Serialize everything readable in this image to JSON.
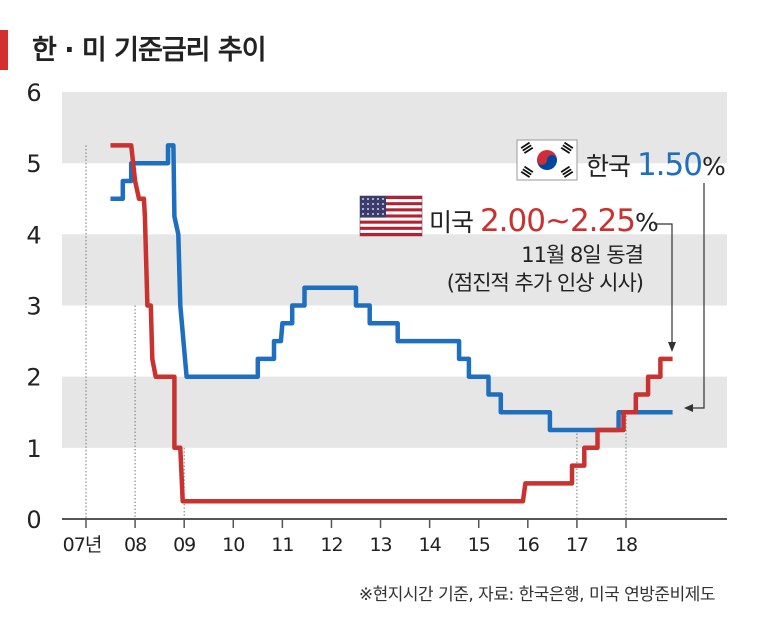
{
  "title": "한 · 미 기준금리 추이",
  "footnote": "※현지시간 기준, 자료: 한국은행, 미국 연방준비제도",
  "colors": {
    "korea": "#1e6fbf",
    "us": "#c9322f",
    "band": "#e6e6e6",
    "axis": "#555555"
  },
  "chart_data": {
    "type": "line",
    "title": "한 · 미 기준금리 추이",
    "xlabel": "",
    "ylabel": "",
    "ylim": [
      0,
      6
    ],
    "y_ticks": [
      "0",
      "1",
      "2",
      "3",
      "4",
      "5",
      "6"
    ],
    "xlim": [
      2007,
      2019.8
    ],
    "x_ticks": [
      {
        "value": 2007,
        "label": "07년"
      },
      {
        "value": 2008,
        "label": "08"
      },
      {
        "value": 2009,
        "label": "09"
      },
      {
        "value": 2010,
        "label": "10"
      },
      {
        "value": 2011,
        "label": "11"
      },
      {
        "value": 2012,
        "label": "12"
      },
      {
        "value": 2013,
        "label": "13"
      },
      {
        "value": 2014,
        "label": "14"
      },
      {
        "value": 2015,
        "label": "15"
      },
      {
        "value": 2016,
        "label": "16"
      },
      {
        "value": 2017,
        "label": "17"
      },
      {
        "value": 2018,
        "label": "18"
      }
    ],
    "grid": "alternating-bands",
    "series": [
      {
        "name": "한국",
        "color": "#1e6fbf",
        "points": [
          [
            2007.5,
            4.5
          ],
          [
            2007.75,
            4.5
          ],
          [
            2007.75,
            4.75
          ],
          [
            2007.92,
            4.75
          ],
          [
            2007.92,
            5.0
          ],
          [
            2008.5,
            5.0
          ],
          [
            2008.5,
            5.0
          ],
          [
            2008.67,
            5.0
          ],
          [
            2008.67,
            5.25
          ],
          [
            2008.78,
            5.25
          ],
          [
            2008.8,
            4.25
          ],
          [
            2008.88,
            4.0
          ],
          [
            2008.92,
            3.0
          ],
          [
            2009.05,
            2.0
          ],
          [
            2010.5,
            2.0
          ],
          [
            2010.5,
            2.25
          ],
          [
            2010.83,
            2.25
          ],
          [
            2010.83,
            2.5
          ],
          [
            2010.97,
            2.5
          ],
          [
            2011.0,
            2.75
          ],
          [
            2011.2,
            2.75
          ],
          [
            2011.2,
            3.0
          ],
          [
            2011.45,
            3.0
          ],
          [
            2011.45,
            3.25
          ],
          [
            2012.5,
            3.25
          ],
          [
            2012.5,
            3.0
          ],
          [
            2012.78,
            3.0
          ],
          [
            2012.78,
            2.75
          ],
          [
            2013.35,
            2.75
          ],
          [
            2013.35,
            2.5
          ],
          [
            2014.6,
            2.5
          ],
          [
            2014.6,
            2.25
          ],
          [
            2014.8,
            2.25
          ],
          [
            2014.8,
            2.0
          ],
          [
            2015.2,
            2.0
          ],
          [
            2015.2,
            1.75
          ],
          [
            2015.45,
            1.75
          ],
          [
            2015.45,
            1.5
          ],
          [
            2016.45,
            1.5
          ],
          [
            2016.45,
            1.25
          ],
          [
            2017.85,
            1.25
          ],
          [
            2017.85,
            1.5
          ],
          [
            2018.95,
            1.5
          ]
        ],
        "end_label": {
          "name": "한국",
          "value": "1.50",
          "unit": "%"
        }
      },
      {
        "name": "미국",
        "color": "#c9322f",
        "points": [
          [
            2007.5,
            5.25
          ],
          [
            2007.92,
            5.25
          ],
          [
            2008.0,
            4.75
          ],
          [
            2008.08,
            4.5
          ],
          [
            2008.18,
            4.5
          ],
          [
            2008.2,
            4.25
          ],
          [
            2008.25,
            3.0
          ],
          [
            2008.32,
            3.0
          ],
          [
            2008.35,
            2.25
          ],
          [
            2008.42,
            2.0
          ],
          [
            2008.8,
            2.0
          ],
          [
            2008.8,
            1.0
          ],
          [
            2008.92,
            1.0
          ],
          [
            2008.97,
            0.25
          ],
          [
            2015.9,
            0.25
          ],
          [
            2015.95,
            0.5
          ],
          [
            2016.9,
            0.5
          ],
          [
            2016.9,
            0.75
          ],
          [
            2017.15,
            0.75
          ],
          [
            2017.15,
            1.0
          ],
          [
            2017.42,
            1.0
          ],
          [
            2017.42,
            1.25
          ],
          [
            2017.95,
            1.25
          ],
          [
            2017.95,
            1.5
          ],
          [
            2018.2,
            1.5
          ],
          [
            2018.2,
            1.75
          ],
          [
            2018.45,
            1.75
          ],
          [
            2018.45,
            2.0
          ],
          [
            2018.7,
            2.0
          ],
          [
            2018.7,
            2.25
          ],
          [
            2018.95,
            2.25
          ]
        ],
        "end_label": {
          "name": "미국",
          "value": "2.00~2.25",
          "unit": "%"
        }
      }
    ],
    "annotations": [
      "11월 8일 동결",
      "(점진적 추가 인상 시사)"
    ]
  }
}
